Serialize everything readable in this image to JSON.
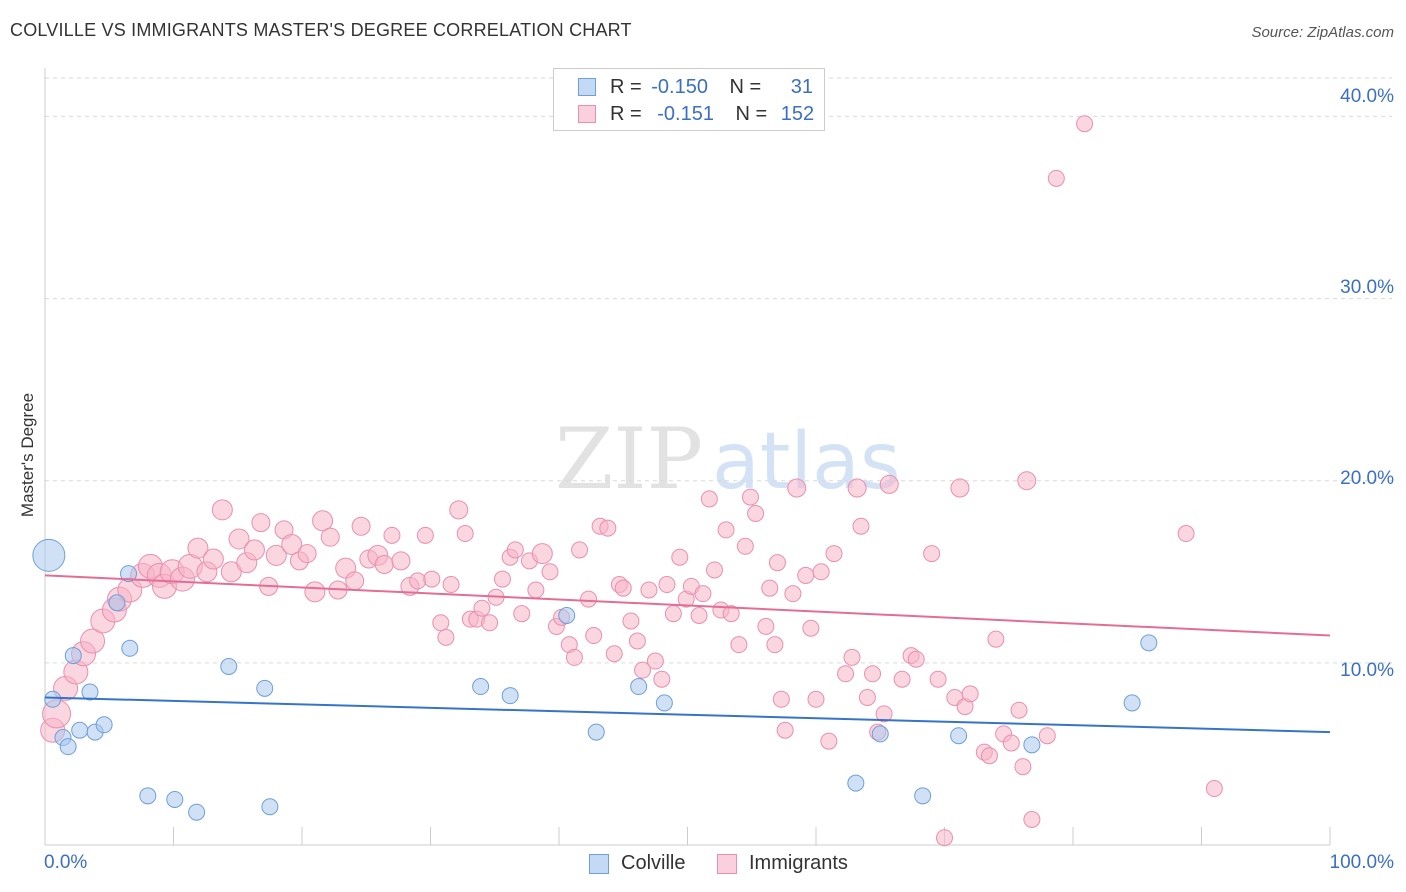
{
  "title": "COLVILLE VS IMMIGRANTS MASTER'S DEGREE CORRELATION CHART",
  "source": "Source: ZipAtlas.com",
  "watermark": {
    "zip": "ZIP",
    "atlas": "atlas"
  },
  "legend_top": {
    "rows": [
      {
        "r_label": "R =",
        "r_value": "-0.150",
        "n_label": "N =",
        "n_value": "31"
      },
      {
        "r_label": "R =",
        "r_value": "-0.151",
        "n_label": "N =",
        "n_value": "152"
      }
    ]
  },
  "legend_bottom": {
    "items": [
      {
        "label": "Colville"
      },
      {
        "label": "Immigrants"
      }
    ]
  },
  "colors": {
    "colville_fill": "#a9c8ef",
    "colville_stroke": "#6f9fd8",
    "colville_line": "#3574c9",
    "immigrants_fill": "#f5b4c8",
    "immigrants_stroke": "#ea8fae",
    "immigrants_line": "#e46d96",
    "tick_text": "#3b6fc4",
    "grid": "#d9d9d9"
  },
  "chart_data": {
    "type": "scatter",
    "title": "COLVILLE VS IMMIGRANTS MASTER'S DEGREE CORRELATION CHART",
    "xlabel": "",
    "ylabel": "Master's Degree",
    "xlim": [
      0,
      100
    ],
    "ylim": [
      0,
      42
    ],
    "x_tick_labels": [
      "0.0%",
      "100.0%"
    ],
    "y_ticks": [
      10,
      20,
      30,
      40
    ],
    "y_tick_labels": [
      "10.0%",
      "20.0%",
      "30.0%",
      "40.0%"
    ],
    "grid": true,
    "legend_position": "top-center",
    "series": [
      {
        "name": "Colville",
        "r": -0.15,
        "n": 31,
        "trend": {
          "x": [
            0,
            100
          ],
          "y": [
            8.1,
            6.2
          ]
        },
        "points": [
          [
            0.3,
            15.9,
            16
          ],
          [
            0.6,
            8.0,
            8
          ],
          [
            1.4,
            5.9,
            8
          ],
          [
            1.8,
            5.4,
            8
          ],
          [
            2.2,
            10.4,
            8
          ],
          [
            2.7,
            6.3,
            8
          ],
          [
            3.5,
            8.4,
            8
          ],
          [
            3.9,
            6.2,
            8
          ],
          [
            4.6,
            6.6,
            8
          ],
          [
            5.6,
            13.3,
            8
          ],
          [
            6.5,
            14.9,
            8
          ],
          [
            6.6,
            10.8,
            8
          ],
          [
            8.0,
            2.7,
            8
          ],
          [
            10.1,
            2.5,
            8
          ],
          [
            11.8,
            1.8,
            8
          ],
          [
            14.3,
            9.8,
            8
          ],
          [
            17.1,
            8.6,
            8
          ],
          [
            17.5,
            2.1,
            8
          ],
          [
            33.9,
            8.7,
            8
          ],
          [
            36.2,
            8.2,
            8
          ],
          [
            40.6,
            12.6,
            8
          ],
          [
            42.9,
            6.2,
            8
          ],
          [
            46.2,
            8.7,
            8
          ],
          [
            48.2,
            7.8,
            8
          ],
          [
            63.1,
            3.4,
            8
          ],
          [
            65.0,
            6.1,
            8
          ],
          [
            68.3,
            2.7,
            8
          ],
          [
            71.1,
            6.0,
            8
          ],
          [
            76.8,
            5.5,
            8
          ],
          [
            84.6,
            7.8,
            8
          ],
          [
            85.9,
            11.1,
            8
          ]
        ]
      },
      {
        "name": "Immigrants",
        "r": -0.151,
        "n": 152,
        "trend": {
          "x": [
            0,
            100
          ],
          "y": [
            14.8,
            11.5
          ]
        },
        "points": [
          [
            0.6,
            6.3,
            12
          ],
          [
            0.9,
            7.2,
            14
          ],
          [
            1.6,
            8.6,
            12
          ],
          [
            2.4,
            9.5,
            12
          ],
          [
            3.0,
            10.5,
            12
          ],
          [
            3.7,
            11.2,
            12
          ],
          [
            4.5,
            12.3,
            12
          ],
          [
            5.4,
            12.9,
            12
          ],
          [
            5.8,
            13.5,
            12
          ],
          [
            6.6,
            14.0,
            12
          ],
          [
            7.6,
            14.8,
            12
          ],
          [
            8.2,
            15.3,
            12
          ],
          [
            8.9,
            14.8,
            12
          ],
          [
            9.3,
            14.2,
            12
          ],
          [
            9.9,
            15.0,
            12
          ],
          [
            10.7,
            14.6,
            12
          ],
          [
            11.3,
            15.3,
            12
          ],
          [
            11.9,
            16.3,
            10
          ],
          [
            12.6,
            15.0,
            10
          ],
          [
            13.1,
            15.7,
            10
          ],
          [
            13.8,
            18.4,
            10
          ],
          [
            14.5,
            15.0,
            10
          ],
          [
            15.1,
            16.8,
            10
          ],
          [
            15.7,
            15.5,
            10
          ],
          [
            16.3,
            16.2,
            10
          ],
          [
            16.8,
            17.7,
            9
          ],
          [
            17.4,
            14.2,
            9
          ],
          [
            18.0,
            15.9,
            10
          ],
          [
            18.6,
            17.3,
            9
          ],
          [
            19.2,
            16.5,
            10
          ],
          [
            19.8,
            15.6,
            9
          ],
          [
            20.4,
            16.0,
            9
          ],
          [
            21.0,
            13.9,
            10
          ],
          [
            21.6,
            17.8,
            10
          ],
          [
            22.2,
            16.9,
            9
          ],
          [
            22.8,
            14.0,
            9
          ],
          [
            23.4,
            15.2,
            10
          ],
          [
            24.1,
            14.5,
            9
          ],
          [
            24.6,
            17.5,
            9
          ],
          [
            25.2,
            15.7,
            9
          ],
          [
            25.9,
            15.9,
            10
          ],
          [
            26.4,
            15.4,
            9
          ],
          [
            27.0,
            17.0,
            8
          ],
          [
            27.7,
            15.6,
            9
          ],
          [
            28.4,
            14.2,
            9
          ],
          [
            29.0,
            14.5,
            8
          ],
          [
            29.6,
            17.0,
            8
          ],
          [
            30.1,
            14.6,
            8
          ],
          [
            30.8,
            12.2,
            8
          ],
          [
            31.2,
            11.4,
            8
          ],
          [
            31.6,
            14.3,
            8
          ],
          [
            32.2,
            18.4,
            9
          ],
          [
            32.7,
            17.1,
            8
          ],
          [
            33.1,
            12.4,
            8
          ],
          [
            33.6,
            12.4,
            8
          ],
          [
            34.0,
            13.0,
            8
          ],
          [
            34.6,
            12.2,
            8
          ],
          [
            35.1,
            13.6,
            8
          ],
          [
            35.6,
            14.6,
            8
          ],
          [
            36.2,
            15.8,
            8
          ],
          [
            36.6,
            16.2,
            8
          ],
          [
            37.1,
            12.7,
            8
          ],
          [
            37.7,
            15.6,
            8
          ],
          [
            38.2,
            14.0,
            8
          ],
          [
            38.7,
            16.0,
            10
          ],
          [
            39.3,
            15.0,
            8
          ],
          [
            39.8,
            12.0,
            8
          ],
          [
            40.2,
            12.5,
            8
          ],
          [
            40.8,
            11.0,
            8
          ],
          [
            41.2,
            10.3,
            8
          ],
          [
            41.6,
            16.2,
            8
          ],
          [
            42.3,
            13.5,
            8
          ],
          [
            42.7,
            11.5,
            8
          ],
          [
            43.2,
            17.5,
            8
          ],
          [
            43.8,
            17.4,
            8
          ],
          [
            44.3,
            10.5,
            8
          ],
          [
            44.7,
            14.3,
            8
          ],
          [
            45.0,
            14.1,
            8
          ],
          [
            45.6,
            12.3,
            8
          ],
          [
            46.1,
            11.2,
            8
          ],
          [
            46.5,
            9.6,
            8
          ],
          [
            47.0,
            14.0,
            8
          ],
          [
            47.5,
            10.1,
            8
          ],
          [
            48.0,
            9.1,
            8
          ],
          [
            48.4,
            14.3,
            8
          ],
          [
            48.9,
            12.7,
            8
          ],
          [
            49.4,
            15.8,
            8
          ],
          [
            49.9,
            13.5,
            8
          ],
          [
            50.3,
            14.2,
            8
          ],
          [
            50.9,
            12.6,
            8
          ],
          [
            51.2,
            13.8,
            8
          ],
          [
            51.7,
            19.0,
            8
          ],
          [
            52.1,
            15.1,
            8
          ],
          [
            52.6,
            12.9,
            8
          ],
          [
            53.0,
            17.3,
            8
          ],
          [
            53.4,
            12.7,
            8
          ],
          [
            54.0,
            11.0,
            8
          ],
          [
            54.5,
            16.4,
            8
          ],
          [
            54.9,
            19.1,
            8
          ],
          [
            55.3,
            18.2,
            8
          ],
          [
            56.1,
            12.0,
            8
          ],
          [
            56.4,
            14.1,
            8
          ],
          [
            56.8,
            11.0,
            8
          ],
          [
            57.0,
            15.5,
            8
          ],
          [
            57.3,
            8.0,
            8
          ],
          [
            57.6,
            6.3,
            8
          ],
          [
            58.2,
            13.8,
            8
          ],
          [
            58.5,
            19.6,
            9
          ],
          [
            59.2,
            14.8,
            8
          ],
          [
            59.6,
            11.9,
            8
          ],
          [
            60.0,
            8.0,
            8
          ],
          [
            60.4,
            15.0,
            8
          ],
          [
            61.0,
            5.7,
            8
          ],
          [
            61.4,
            16.0,
            8
          ],
          [
            62.3,
            9.4,
            8
          ],
          [
            62.8,
            10.3,
            8
          ],
          [
            63.2,
            19.6,
            9
          ],
          [
            63.5,
            17.5,
            8
          ],
          [
            64.0,
            8.1,
            8
          ],
          [
            64.4,
            9.4,
            8
          ],
          [
            64.8,
            6.2,
            8
          ],
          [
            65.3,
            7.2,
            8
          ],
          [
            65.7,
            19.8,
            9
          ],
          [
            66.7,
            9.1,
            8
          ],
          [
            67.4,
            10.4,
            8
          ],
          [
            67.8,
            10.2,
            8
          ],
          [
            69.0,
            16.0,
            8
          ],
          [
            69.5,
            9.1,
            8
          ],
          [
            70.0,
            0.4,
            8
          ],
          [
            70.8,
            8.1,
            8
          ],
          [
            71.2,
            19.6,
            9
          ],
          [
            71.6,
            7.6,
            8
          ],
          [
            72.0,
            8.3,
            8
          ],
          [
            73.1,
            5.1,
            8
          ],
          [
            73.5,
            4.9,
            8
          ],
          [
            74.0,
            11.3,
            8
          ],
          [
            74.6,
            6.1,
            8
          ],
          [
            75.2,
            5.6,
            8
          ],
          [
            75.8,
            7.4,
            8
          ],
          [
            76.1,
            4.3,
            8
          ],
          [
            76.8,
            1.4,
            8
          ],
          [
            76.4,
            20.0,
            9
          ],
          [
            78.0,
            6.0,
            8
          ],
          [
            78.7,
            36.6,
            8
          ],
          [
            80.9,
            39.6,
            8
          ],
          [
            88.8,
            17.1,
            8
          ],
          [
            91.0,
            3.1,
            8
          ]
        ]
      }
    ]
  }
}
